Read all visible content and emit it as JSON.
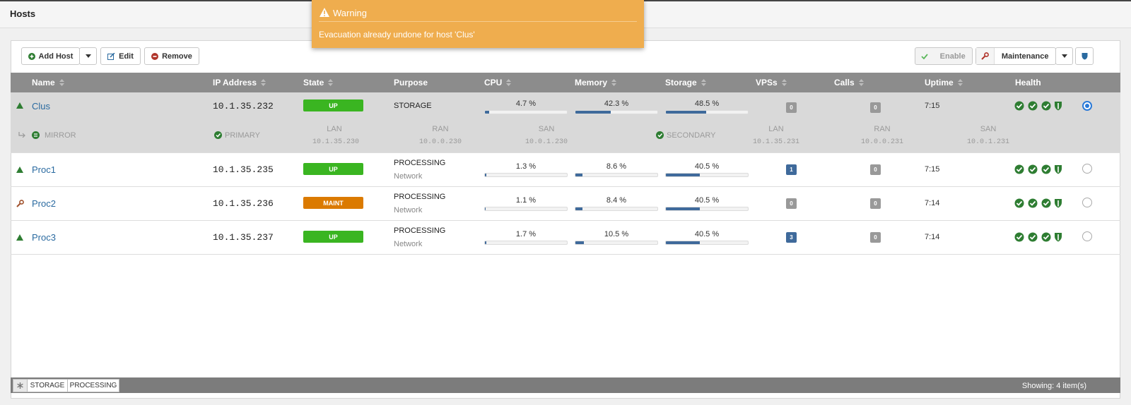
{
  "header": {
    "title": "Hosts"
  },
  "toast": {
    "title": "Warning",
    "message": "Evacuation already undone for host 'Clus'"
  },
  "toolbar": {
    "add": "Add Host",
    "edit": "Edit",
    "remove": "Remove",
    "enable": "Enable",
    "maintenance": "Maintenance"
  },
  "table": {
    "columns": [
      "Name",
      "IP Address",
      "State",
      "Purpose",
      "CPU",
      "Memory",
      "Storage",
      "VPSs",
      "Calls",
      "Uptime",
      "Health"
    ],
    "rows": [
      {
        "name": "Clus",
        "ip": "10.1.35.232",
        "state": "UP",
        "purpose": "STORAGE",
        "cpu": {
          "value": 4.7,
          "label": "4.7 %"
        },
        "memory": {
          "value": 42.3,
          "label": "42.3 %"
        },
        "storage": {
          "value": 48.5,
          "label": "48.5 %"
        },
        "vpss": 0,
        "calls": 0,
        "uptime": "7:15"
      },
      {
        "name": "Proc1",
        "ip": "10.1.35.235",
        "state": "UP",
        "purpose": "PROCESSING",
        "purpose_sub": "Network",
        "cpu": {
          "value": 1.3,
          "label": "1.3 %"
        },
        "memory": {
          "value": 8.6,
          "label": "8.6 %"
        },
        "storage": {
          "value": 40.5,
          "label": "40.5 %"
        },
        "vpss": 1,
        "calls": 0,
        "uptime": "7:15"
      },
      {
        "name": "Proc2",
        "ip": "10.1.35.236",
        "state": "MAINT",
        "purpose": "PROCESSING",
        "purpose_sub": "Network",
        "cpu": {
          "value": 1.1,
          "label": "1.1 %"
        },
        "memory": {
          "value": 8.4,
          "label": "8.4 %"
        },
        "storage": {
          "value": 40.5,
          "label": "40.5 %"
        },
        "vpss": 0,
        "calls": 0,
        "uptime": "7:14"
      },
      {
        "name": "Proc3",
        "ip": "10.1.35.237",
        "state": "UP",
        "purpose": "PROCESSING",
        "purpose_sub": "Network",
        "cpu": {
          "value": 1.7,
          "label": "1.7 %"
        },
        "memory": {
          "value": 10.5,
          "label": "10.5 %"
        },
        "storage": {
          "value": 40.5,
          "label": "40.5 %"
        },
        "vpss": 3,
        "calls": 0,
        "uptime": "7:14"
      }
    ]
  },
  "mirror": {
    "label": "MIRROR",
    "primary": {
      "label": "PRIMARY",
      "lan_label": "LAN",
      "lan": "10.1.35.230",
      "ran_label": "RAN",
      "ran": "10.0.0.230",
      "san_label": "SAN",
      "san": "10.0.1.230"
    },
    "secondary": {
      "label": "SECONDARY",
      "lan_label": "LAN",
      "lan": "10.1.35.231",
      "ran_label": "RAN",
      "ran": "10.0.0.231",
      "san_label": "SAN",
      "san": "10.0.1.231"
    }
  },
  "footer": {
    "filters": [
      "STORAGE",
      "PROCESSING"
    ],
    "showing": "Showing: 4 item(s)"
  }
}
